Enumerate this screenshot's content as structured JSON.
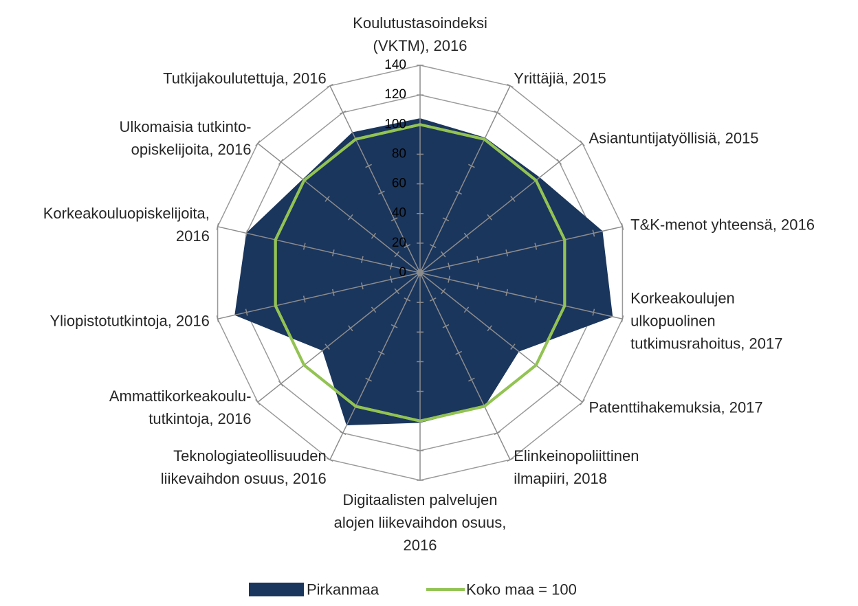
{
  "chart_data": {
    "type": "radar",
    "categories": [
      "Koulutustasoindeksi\n(VKTM), 2016",
      "Yrittäjiä, 2015",
      "Asiantuntijatyöllisiä, 2015",
      "T&K-menot yhteensä, 2016",
      "Korkeakoulujen\nulkopuolinen\ntutkimusrahoitus, 2017",
      "Patenttihakemuksia, 2017",
      "Elinkeinopoliittinen\nilmapiiri, 2018",
      "Digitaalisten palvelujen\nalojen liikevaihdon osuus,\n2016",
      "Teknologiateollisuuden\nliikevaihdon osuus, 2016",
      "Ammattikorkeakoulu-\ntutkintoja, 2016",
      "Yliopistotutkintoja, 2016",
      "Korkeakouluopiskelijoita,\n2016",
      "Ulkomaisia tutkinto-\nopiskelijoita, 2016",
      "Tutkijakoulutettuja, 2016"
    ],
    "series": [
      {
        "name": "Pirkanmaa",
        "color": "#1b365d",
        "values": [
          104,
          101,
          103,
          126,
          133,
          85,
          100,
          101,
          114,
          84,
          128,
          120,
          101,
          105
        ]
      },
      {
        "name": "Koko maa = 100",
        "color": "#92c353",
        "values": [
          100,
          100,
          100,
          100,
          100,
          100,
          100,
          100,
          100,
          100,
          100,
          100,
          100,
          100
        ]
      }
    ],
    "ylim": [
      0,
      140
    ],
    "yticks": [
      0,
      20,
      40,
      60,
      80,
      100,
      120,
      140
    ],
    "grid": true
  }
}
